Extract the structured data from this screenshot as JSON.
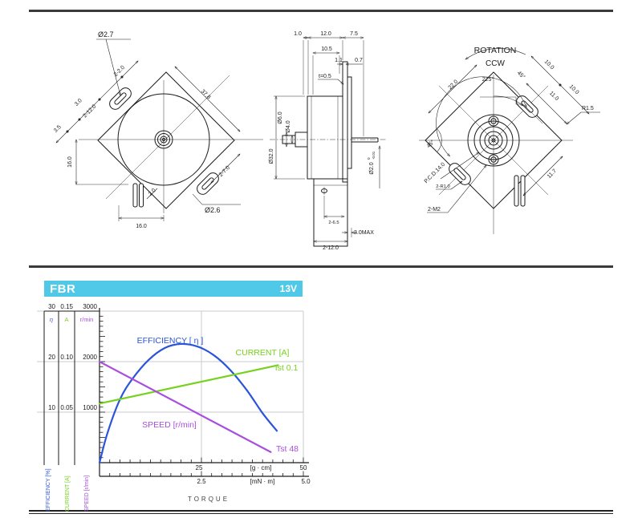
{
  "drawings": {
    "front": {
      "labels": {
        "dia27": "Ø2.7",
        "two20": "2-2.0",
        "d30": "3.0",
        "two120": "2-12.0",
        "d35": "3.5",
        "v160": "16.0",
        "d20": "2.0",
        "h160": "16.0",
        "d378": "37.8",
        "two70": "2-7.0",
        "dia26": "Ø2.6"
      }
    },
    "side": {
      "labels": {
        "d10": "1.0",
        "d120": "12.0",
        "d75": "7.5",
        "d105": "10.5",
        "d11": "1.1",
        "d07": "0.7",
        "t05": "t=0.5",
        "dia320": "Ø32.0",
        "dia60": "Ø6.0",
        "dia40": "Ø4.0",
        "dia20": "Ø2.0",
        "tol_hi": "0",
        "tol_lo": "-0.01",
        "two65": "2-6.5",
        "max30": "3.0MAX",
        "two120b": "2-12.0"
      }
    },
    "rear": {
      "labels": {
        "rotation": "ROTATION",
        "ccw": "CCW",
        "a225": "225°",
        "a45": "45°",
        "a45b": "45°",
        "d220": "22.0",
        "d100a": "10.0",
        "d100b": "10.0",
        "d110": "11.0",
        "r15": "R1.5",
        "pcd": "P.C.D.14.0",
        "two_r10": "2-R1.0",
        "two_m2": "2-M2",
        "d117": "11.7"
      }
    }
  },
  "chart_data": {
    "type": "line",
    "title": "FBR",
    "voltage": "13V",
    "x_axis": {
      "label": "TORQUE",
      "primary": {
        "unit": "[g · cm]",
        "ticks": [
          "25",
          "50"
        ],
        "max": 50,
        "minor_step": 2.5
      },
      "secondary": {
        "unit": "[mN · m]",
        "ticks": [
          "2.5",
          "5.0"
        ],
        "max": 5,
        "minor_step": 0.25
      }
    },
    "y_axes": [
      {
        "id": "efficiency",
        "header": "η",
        "legend": "EFFICIENCY [%]",
        "color": "#2b55d8",
        "ticks": [
          "10",
          "20",
          "30"
        ],
        "max": 30,
        "minor_step": 1
      },
      {
        "id": "current",
        "header": "A",
        "legend": "CURRENT [A]",
        "color": "#76d21e",
        "ticks": [
          "0.05",
          "0.10",
          "0.15"
        ],
        "max": 0.15,
        "minor_step": 0.005
      },
      {
        "id": "speed",
        "header": "r/min",
        "legend": "SPEED [r/min]",
        "color": "#a94fe0",
        "ticks": [
          "1000",
          "2000",
          "3000"
        ],
        "max": 3000,
        "minor_step": 100
      }
    ],
    "series": [
      {
        "axis": "efficiency",
        "label": "EFFICIENCY [ η ]",
        "color": "#2b55d8",
        "points": [
          [
            0,
            0
          ],
          [
            2,
            6
          ],
          [
            5,
            12.5
          ],
          [
            8,
            16.5
          ],
          [
            12,
            20.3
          ],
          [
            16,
            22.7
          ],
          [
            20,
            23.5
          ],
          [
            24,
            23.0
          ],
          [
            28,
            21.3
          ],
          [
            32,
            18.4
          ],
          [
            36,
            14.5
          ],
          [
            40,
            9.8
          ],
          [
            43.5,
            6.3
          ]
        ]
      },
      {
        "axis": "current",
        "label": "CURRENT [A]",
        "annotation": "Ist 0.1",
        "color": "#76d21e",
        "points": [
          [
            0,
            0.0585
          ],
          [
            43.8,
            0.0965
          ]
        ]
      },
      {
        "axis": "speed",
        "label": "SPEED [r/min]",
        "annotation": "Tst 48",
        "color": "#a94fe0",
        "points": [
          [
            0,
            2000
          ],
          [
            42,
            210
          ]
        ]
      }
    ],
    "grid": true
  }
}
